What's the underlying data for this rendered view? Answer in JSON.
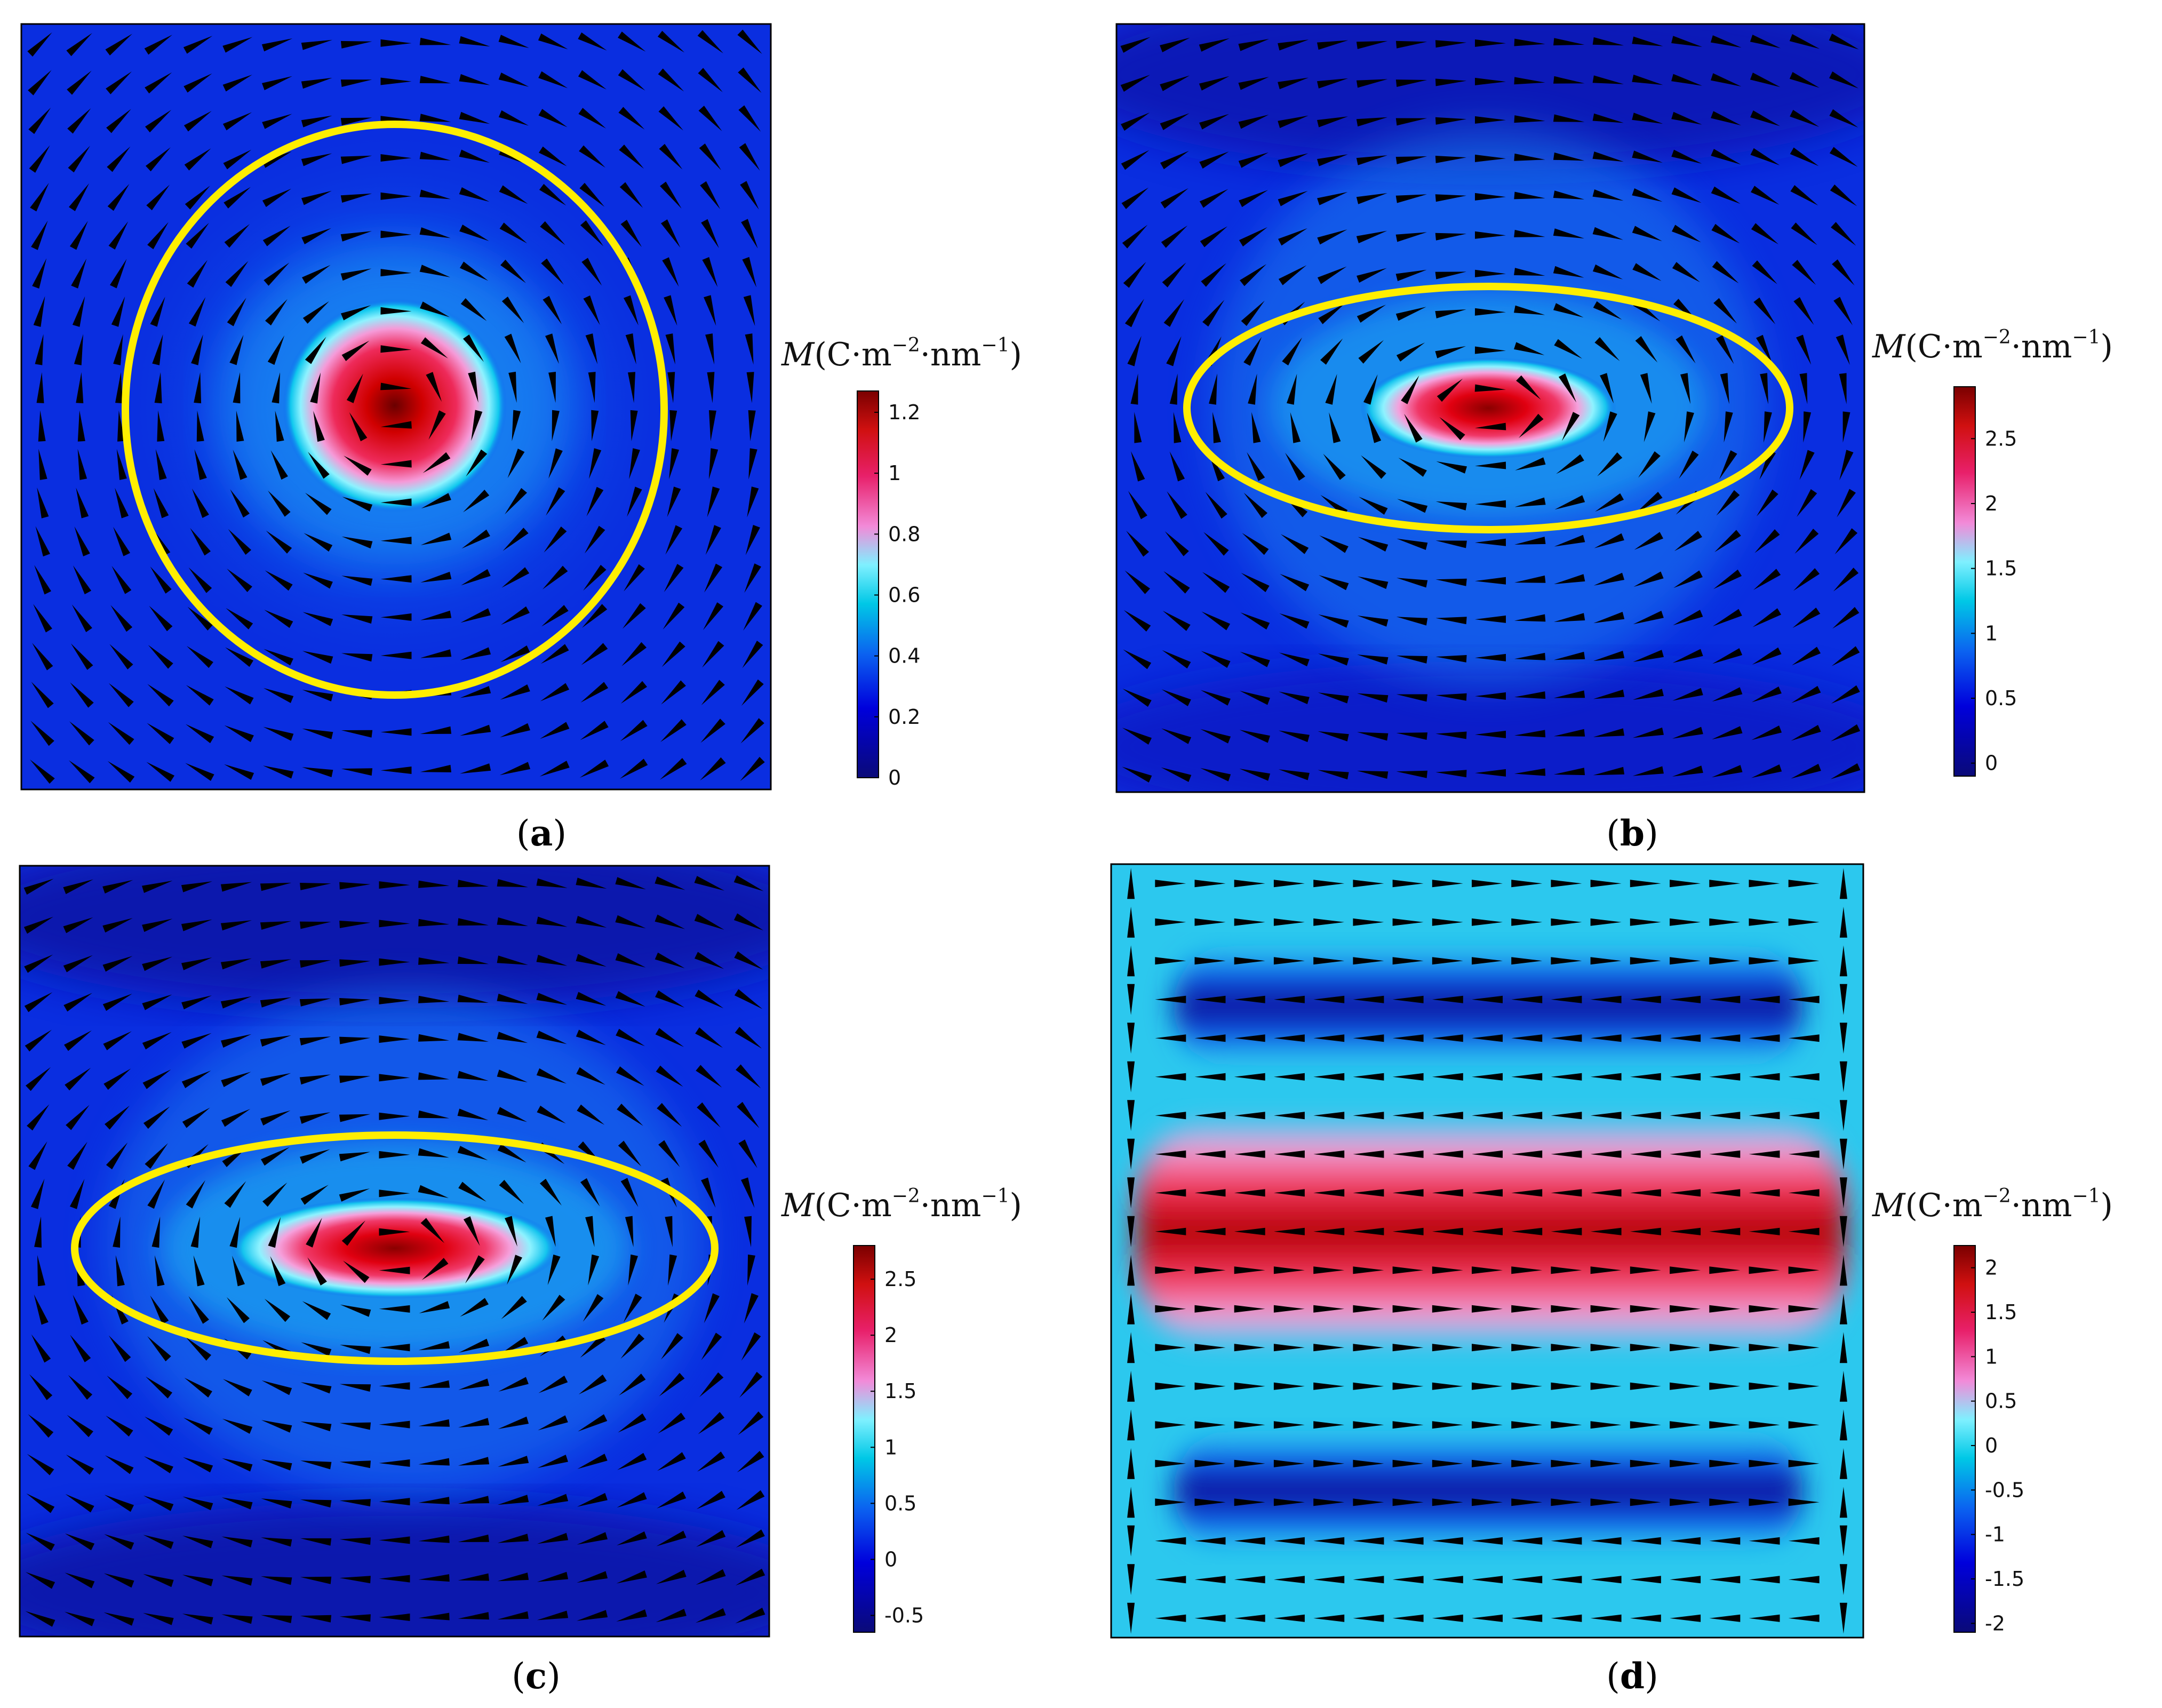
{
  "figure": {
    "colorbar_label": {
      "symbol": "M",
      "open": "(C·m",
      "exp1": "−2",
      "mid": "·nm",
      "exp2": "−1",
      "close": ")"
    },
    "panels": [
      {
        "id": "a",
        "caption": "a",
        "shape": "circle",
        "ticks": [
          "1.2",
          "1",
          "0.8",
          "0.6",
          "0.4",
          "0.2",
          "0"
        ],
        "range": [
          0,
          1.27
        ],
        "tick_values": [
          1.2,
          1,
          0.8,
          0.6,
          0.4,
          0.2,
          0
        ]
      },
      {
        "id": "b",
        "caption": "b",
        "shape": "ellipse",
        "ticks": [
          "2.5",
          "2",
          "1.5",
          "1",
          "0.5",
          "0"
        ],
        "range": [
          -0.1,
          2.9
        ],
        "tick_values": [
          2.5,
          2,
          1.5,
          1,
          0.5,
          0
        ]
      },
      {
        "id": "c",
        "caption": "c",
        "shape": "ellipse",
        "ticks": [
          "2.5",
          "2",
          "1.5",
          "1",
          "0.5",
          "0",
          "-0.5"
        ],
        "range": [
          -0.65,
          2.8
        ],
        "tick_values": [
          2.5,
          2,
          1.5,
          1,
          0.5,
          0,
          -0.5
        ]
      },
      {
        "id": "d",
        "caption": "d",
        "shape": "none",
        "ticks": [
          "2",
          "1.5",
          "1",
          "0.5",
          "0",
          "-0.5",
          "-1",
          "-1.5",
          "-2"
        ],
        "range": [
          -2.1,
          2.25
        ],
        "tick_values": [
          2,
          1.5,
          1,
          0.5,
          0,
          -0.5,
          -1,
          -1.5,
          -2
        ]
      }
    ],
    "colors": {
      "ellipse": "#ffee00",
      "arrow": "#000000"
    },
    "colormap": [
      "#0a0a78",
      "#0000dc",
      "#0b62f0",
      "#00c8e6",
      "#7ff0ff",
      "#f28ad8",
      "#e8206a",
      "#d01010",
      "#7a0000"
    ]
  }
}
